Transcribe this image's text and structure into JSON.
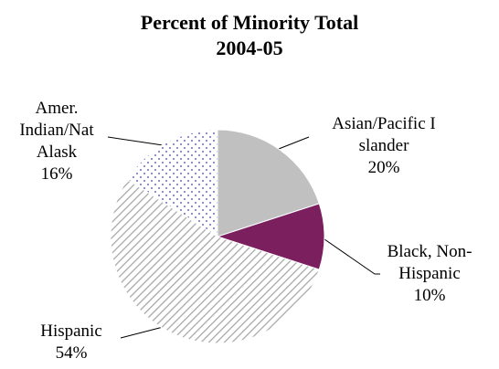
{
  "chart_data": {
    "type": "pie",
    "title": "Percent of Minority Total",
    "subtitle": "2004-05",
    "categories": [
      "Asian/Pacific Islander",
      "Black, Non-Hispanic",
      "Hispanic",
      "Amer. Indian/Nat Alask"
    ],
    "values": [
      20,
      10,
      54,
      16
    ],
    "value_labels": [
      "20%",
      "10%",
      "54%",
      "16%"
    ],
    "colors": [
      "#c0c0c0",
      "#7b1f5e",
      "#a6a6a6",
      "#6a6acc"
    ],
    "fills": [
      "solid",
      "solid",
      "hatch",
      "dots"
    ]
  }
}
